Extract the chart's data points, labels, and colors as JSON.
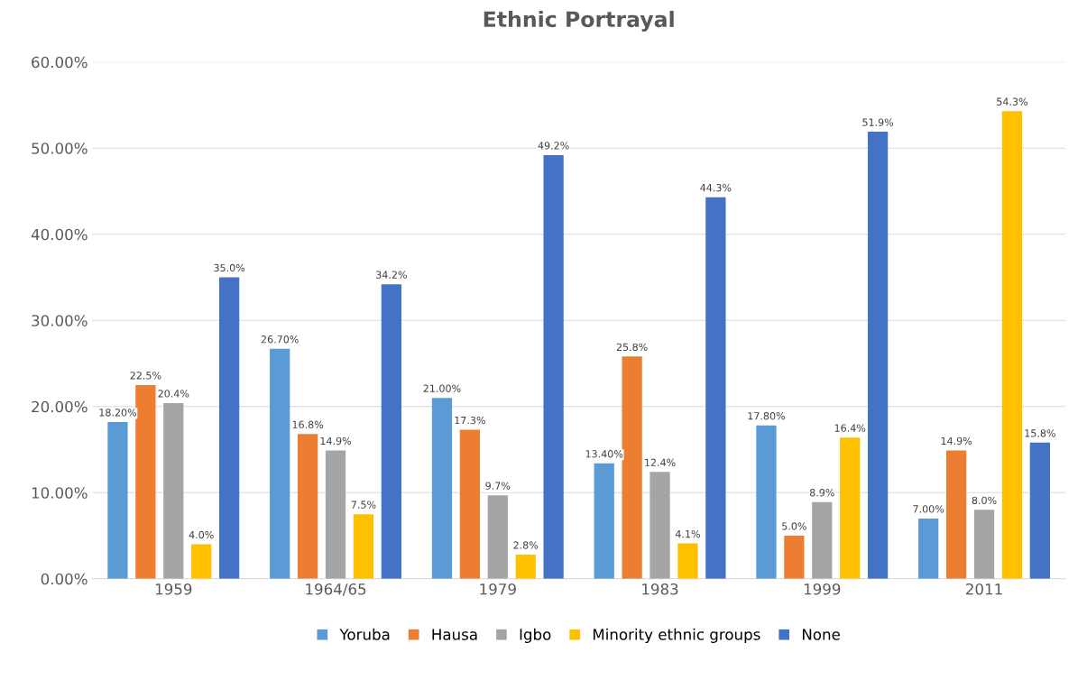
{
  "chart_data": {
    "type": "bar",
    "title": "Ethnic Portrayal",
    "categories": [
      "1959",
      "1964/65",
      "1979",
      "1983",
      "1999",
      "2011"
    ],
    "series": [
      {
        "name": "Yoruba",
        "color": "#5b9bd5",
        "values": [
          18.2,
          26.7,
          21.0,
          13.4,
          17.8,
          7.0
        ],
        "value_labels": [
          "18.20%",
          "26.70%",
          "21.00%",
          "13.40%",
          "17.80%",
          "7.00%"
        ]
      },
      {
        "name": "Hausa",
        "color": "#ed7d31",
        "values": [
          22.5,
          16.8,
          17.3,
          25.8,
          5.0,
          14.9
        ],
        "value_labels": [
          "22.5%",
          "16.8%",
          "17.3%",
          "25.8%",
          "5.0%",
          "14.9%"
        ]
      },
      {
        "name": "Igbo",
        "color": "#a5a5a5",
        "values": [
          20.4,
          14.9,
          9.7,
          12.4,
          8.9,
          8.0
        ],
        "value_labels": [
          "20.4%",
          "14.9%",
          "9.7%",
          "12.4%",
          "8.9%",
          "8.0%"
        ]
      },
      {
        "name": "Minority ethnic groups",
        "color": "#ffc000",
        "values": [
          4.0,
          7.5,
          2.8,
          4.1,
          16.4,
          54.3
        ],
        "value_labels": [
          "4.0%",
          "7.5%",
          "2.8%",
          "4.1%",
          "16.4%",
          "54.3%"
        ]
      },
      {
        "name": "None",
        "color": "#4472c4",
        "values": [
          35.0,
          34.2,
          49.2,
          44.3,
          51.9,
          15.8
        ],
        "value_labels": [
          "35.0%",
          "34.2%",
          "49.2%",
          "44.3%",
          "51.9%",
          "15.8%"
        ]
      }
    ],
    "ylim": [
      0,
      60
    ],
    "yticks": [
      {
        "value": 0,
        "label": "0.00%"
      },
      {
        "value": 10,
        "label": "10.00%"
      },
      {
        "value": 20,
        "label": "20.00%"
      },
      {
        "value": 30,
        "label": "30.00%"
      },
      {
        "value": 40,
        "label": "40.00%"
      },
      {
        "value": 50,
        "label": "50.00%"
      },
      {
        "value": 60,
        "label": "60.00%"
      }
    ],
    "grid": "y",
    "legend": "bottom"
  }
}
